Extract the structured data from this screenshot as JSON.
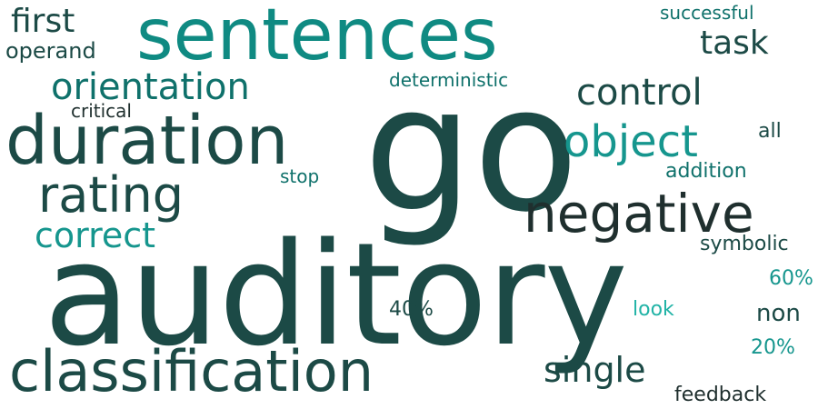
{
  "palette": {
    "dark": "#1c4a46",
    "mid": "#0f716b",
    "teal": "#16968e",
    "bright": "#21b3a6",
    "ink": "#1f2f2e"
  },
  "words": [
    {
      "text": "auditory",
      "color": "#1c4a46"
    },
    {
      "text": "go",
      "color": "#1c4a46"
    },
    {
      "text": "sentences",
      "color": "#0f8a82"
    },
    {
      "text": "duration",
      "color": "#1c4a46"
    },
    {
      "text": "classification",
      "color": "#1c4a46"
    },
    {
      "text": "negative",
      "color": "#1f2f2e"
    },
    {
      "text": "rating",
      "color": "#1c4a46"
    },
    {
      "text": "object",
      "color": "#16968e"
    },
    {
      "text": "orientation",
      "color": "#0f716b"
    },
    {
      "text": "control",
      "color": "#1c4a46"
    },
    {
      "text": "correct",
      "color": "#16968e"
    },
    {
      "text": "single",
      "color": "#1c4a46"
    },
    {
      "text": "first",
      "color": "#1c4a46"
    },
    {
      "text": "task",
      "color": "#1c4a46"
    },
    {
      "text": "operand",
      "color": "#1c4a46"
    },
    {
      "text": "successful",
      "color": "#0f716b"
    },
    {
      "text": "deterministic",
      "color": "#0f716b"
    },
    {
      "text": "critical",
      "color": "#1f2f2e"
    },
    {
      "text": "all",
      "color": "#1c4a46"
    },
    {
      "text": "addition",
      "color": "#0f716b"
    },
    {
      "text": "stop",
      "color": "#0f716b"
    },
    {
      "text": "symbolic",
      "color": "#1c4a46"
    },
    {
      "text": "60%",
      "color": "#16968e"
    },
    {
      "text": "40%",
      "color": "#1c4a46"
    },
    {
      "text": "look",
      "color": "#21b3a6"
    },
    {
      "text": "non",
      "color": "#1c4a46"
    },
    {
      "text": "20%",
      "color": "#16968e"
    },
    {
      "text": "feedback",
      "color": "#1f2f2e"
    }
  ]
}
